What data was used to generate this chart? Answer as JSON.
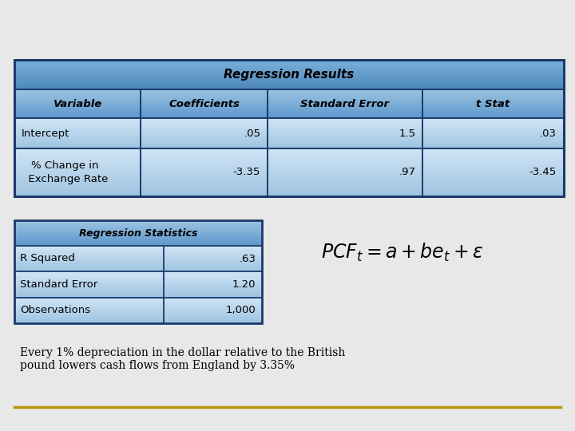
{
  "bg_color": "#e8e8e8",
  "title": "Regression Results",
  "header_row": [
    "Variable",
    "Coefficients",
    "Standard Error",
    "t Stat"
  ],
  "data_rows": [
    [
      "Intercept",
      ".05",
      "1.5",
      ".03"
    ],
    [
      "% Change in\n  Exchange Rate",
      "-3.35",
      ".97",
      "-3.45"
    ]
  ],
  "stats_title": "Regression Statistics",
  "stats_rows": [
    [
      "R Squared",
      ".63"
    ],
    [
      "Standard Error",
      "1.20"
    ],
    [
      "Observations",
      "1,000"
    ]
  ],
  "footnote": "Every 1% depreciation in the dollar relative to the British\npound lowers cash flows from England by 3.35%",
  "table_border_color": "#1a3a6b",
  "cell_bg_top": "#d0e4f5",
  "cell_bg_bot": "#9dc3e0",
  "header_bg_top": "#9dc3e0",
  "header_bg_bot": "#5b96cc",
  "title_bg_top": "#7ab0d8",
  "title_bg_bot": "#4d88bb",
  "gold_line_color": "#b8960a",
  "font_size_title": 11,
  "font_size_header": 9.5,
  "font_size_data": 9.5,
  "font_size_formula": 17,
  "font_size_footnote": 10
}
